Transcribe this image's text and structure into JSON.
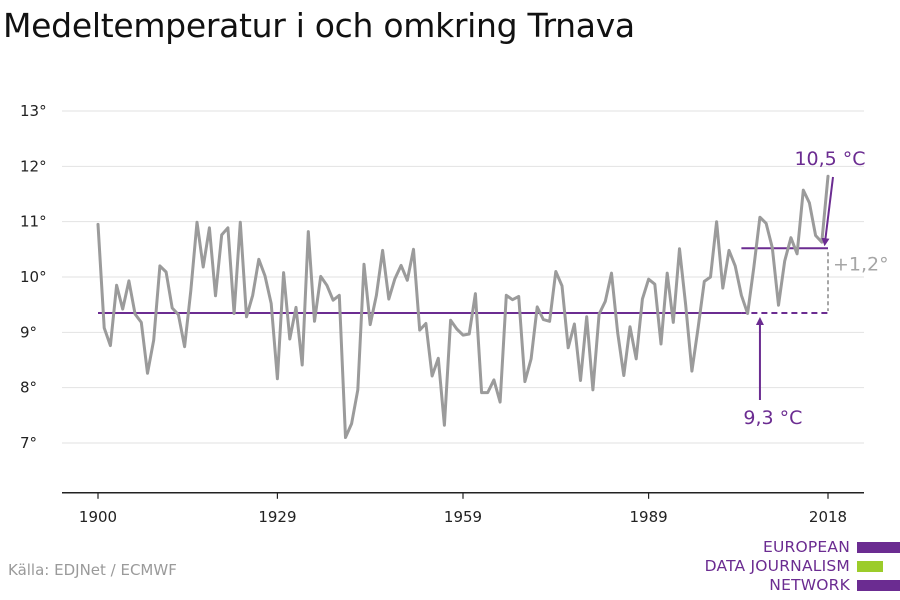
{
  "title": "Medeltemperatur i och omkring Trnava",
  "source": "Källa: EDJNet / ECMWF",
  "logo": {
    "lines": [
      "EUROPEAN",
      "DATA JOURNALISM",
      "NETWORK"
    ],
    "colors": [
      "#6b2c91",
      "#9ccc2a",
      "#6b2c91"
    ]
  },
  "chart_data": {
    "type": "line",
    "title": "Medeltemperatur i och omkring Trnava",
    "xlabel": "",
    "ylabel": "",
    "x_ticks": [
      "1900",
      "1929",
      "1959",
      "1989",
      "2018"
    ],
    "y_ticks": [
      "7°",
      "8°",
      "9°",
      "10°",
      "11°",
      "12°",
      "13°"
    ],
    "xlim": [
      1900,
      2018
    ],
    "ylim": [
      6.1,
      13.2
    ],
    "grid": "horizontal",
    "colors": {
      "series": "#9b9b9b",
      "annotation": "#6b2c91",
      "delta": "#a6a6a6",
      "grid": "#e2e2e2"
    },
    "series": [
      {
        "x": [
          1900,
          1901,
          1902,
          1903,
          1904,
          1905,
          1906,
          1907,
          1908,
          1909,
          1910,
          1911,
          1912,
          1913,
          1914,
          1915,
          1916,
          1917,
          1918,
          1919,
          1920,
          1921,
          1922,
          1923,
          1924,
          1925,
          1926,
          1927,
          1928,
          1929,
          1930,
          1931,
          1932,
          1933,
          1934,
          1935,
          1936,
          1937,
          1938,
          1939,
          1940,
          1941,
          1942,
          1943,
          1944,
          1945,
          1946,
          1947,
          1948,
          1949,
          1950,
          1951,
          1952,
          1953,
          1954,
          1955,
          1956,
          1957,
          1958,
          1959,
          1960,
          1961,
          1962,
          1963,
          1964,
          1965,
          1966,
          1967,
          1968,
          1969,
          1970,
          1971,
          1972,
          1973,
          1974,
          1975,
          1976,
          1977,
          1978,
          1979,
          1980,
          1981,
          1982,
          1983,
          1984,
          1985,
          1986,
          1987,
          1988,
          1989,
          1990,
          1991,
          1992,
          1993,
          1994,
          1995,
          1996,
          1997,
          1998,
          1999,
          2000,
          2001,
          2002,
          2003,
          2004,
          2005,
          2006,
          2007,
          2008,
          2009,
          2010,
          2011,
          2012,
          2013,
          2014,
          2015,
          2016,
          2017,
          2018
        ],
        "values": [
          10.95,
          9.08,
          8.76,
          9.85,
          9.42,
          9.93,
          9.33,
          9.18,
          8.26,
          8.86,
          10.2,
          10.09,
          9.44,
          9.32,
          8.74,
          9.75,
          10.99,
          10.18,
          10.89,
          9.66,
          10.76,
          10.89,
          9.34,
          10.99,
          9.28,
          9.67,
          10.32,
          10.02,
          9.52,
          8.16,
          10.08,
          8.88,
          9.45,
          8.41,
          10.82,
          9.2,
          10.01,
          9.85,
          9.58,
          9.67,
          7.1,
          7.35,
          7.96,
          10.23,
          9.14,
          9.67,
          10.48,
          9.6,
          9.97,
          10.21,
          9.94,
          10.5,
          9.04,
          9.16,
          8.21,
          8.53,
          7.32,
          9.22,
          9.06,
          8.95,
          8.97,
          9.7,
          7.91,
          7.91,
          8.14,
          7.74,
          9.67,
          9.59,
          9.65,
          8.11,
          8.52,
          9.46,
          9.23,
          9.2,
          10.1,
          9.84,
          8.72,
          9.15,
          8.13,
          9.28,
          7.96,
          9.33,
          9.56,
          10.07,
          8.99,
          8.22,
          9.1,
          8.52,
          9.6,
          9.96,
          9.87,
          8.79,
          10.07,
          9.18,
          10.51,
          9.49,
          8.3,
          9.08,
          9.92,
          10.0,
          11.0,
          9.8,
          10.48,
          10.2,
          9.67,
          9.34,
          10.17,
          11.08,
          10.97,
          10.53,
          9.49,
          10.29,
          10.71,
          10.42,
          11.57,
          11.34,
          10.75,
          10.63,
          11.82
        ]
      }
    ],
    "reference_lines": [
      {
        "label": "9,3 °C",
        "value": 9.35,
        "x_start": 1900,
        "x_end": 2018
      },
      {
        "label": "10,5 °C",
        "value": 10.52,
        "x_start": 2004,
        "x_end": 2018
      }
    ],
    "annotations": [
      "9,3 °C",
      "10,5 °C",
      "+1,2°"
    ]
  }
}
